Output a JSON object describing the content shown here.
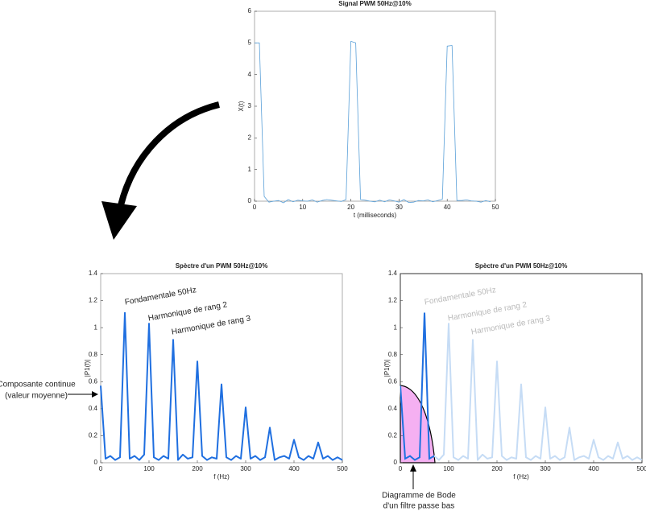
{
  "chart_data": [
    {
      "type": "line",
      "title": "Signal PWM 50Hz@10%",
      "x_label": "t (milliseconds)",
      "y_label": "X(t)",
      "x": [
        0,
        1,
        2,
        3,
        4,
        5,
        6,
        7,
        8,
        9,
        10,
        11,
        12,
        13,
        14,
        15,
        16,
        17,
        18,
        19,
        20,
        21,
        22,
        23,
        24,
        25,
        26,
        27,
        28,
        29,
        30,
        31,
        32,
        33,
        34,
        35,
        36,
        37,
        38,
        39,
        40,
        41,
        42,
        43,
        44,
        45,
        46,
        47,
        48,
        49
      ],
      "values": [
        5,
        5,
        0.15,
        -0.03,
        0,
        0.02,
        -0.05,
        0.05,
        -0.02,
        0.03,
        0.01,
        0,
        0.04,
        -0.03,
        0.02,
        0.05,
        0.03,
        0.01,
        -0.01,
        0.05,
        5.05,
        5,
        0.05,
        0.03,
        0,
        -0.02,
        0.03,
        -0.02,
        0.04,
        0.01,
        -0.03,
        0.05,
        -0.04,
        -0.03,
        0.02,
        0.01,
        0.04,
        -0.02,
        0.02,
        0.06,
        4.9,
        4.92,
        0.02,
        0.02,
        0.04,
        0.01,
        0,
        -0.03,
        0.02,
        -0.02
      ],
      "color": "#5aa0d8",
      "xlim": [
        0,
        50
      ],
      "xticks": [
        0,
        10,
        20,
        30,
        40,
        50
      ],
      "ylim": [
        0,
        6
      ],
      "yticks": [
        0,
        1,
        2,
        3,
        4,
        5,
        6
      ]
    },
    {
      "type": "line",
      "title": "Spèctre d'un PWM 50Hz@10%",
      "x_label": "f (Hz)",
      "y_label": "|P1(f)|",
      "x": [
        0,
        10,
        20,
        30,
        40,
        50,
        60,
        70,
        80,
        90,
        100,
        110,
        120,
        130,
        140,
        150,
        160,
        170,
        180,
        190,
        200,
        210,
        220,
        230,
        240,
        250,
        260,
        270,
        280,
        290,
        300,
        310,
        320,
        330,
        340,
        350,
        360,
        370,
        380,
        390,
        400,
        410,
        420,
        430,
        440,
        450,
        460,
        470,
        480,
        490,
        500
      ],
      "values": [
        0.57,
        0.03,
        0.05,
        0.02,
        0.04,
        1.11,
        0.03,
        0.05,
        0.02,
        0.06,
        1.03,
        0.04,
        0.02,
        0.05,
        0.03,
        0.91,
        0.02,
        0.06,
        0.03,
        0.04,
        0.75,
        0.05,
        0.02,
        0.04,
        0.03,
        0.58,
        0.04,
        0.02,
        0.05,
        0.03,
        0.41,
        0.03,
        0.05,
        0.02,
        0.04,
        0.26,
        0.02,
        0.04,
        0.05,
        0.03,
        0.17,
        0.04,
        0.02,
        0.05,
        0.03,
        0.15,
        0.03,
        0.05,
        0.02,
        0.04,
        0.02
      ],
      "color": "#1f6fe0",
      "xlim": [
        0,
        500
      ],
      "xticks": [
        0,
        100,
        200,
        300,
        400,
        500
      ],
      "ylim": [
        0,
        1.4
      ],
      "yticks": [
        0,
        0.2,
        0.4,
        0.6,
        0.8,
        1,
        1.2,
        1.4
      ],
      "annotations": [
        "Fondamentale 50Hz",
        "Harmonique de rang 2",
        "Harmonique de rang 3"
      ]
    },
    {
      "type": "line",
      "title": "Spèctre d'un PWM 50Hz@10%",
      "x_label": "f (Hz)",
      "y_label": "|P1(f)|",
      "x": [
        0,
        10,
        20,
        30,
        40,
        50,
        60,
        70,
        80,
        90,
        100,
        110,
        120,
        130,
        140,
        150,
        160,
        170,
        180,
        190,
        200,
        210,
        220,
        230,
        240,
        250,
        260,
        270,
        280,
        290,
        300,
        310,
        320,
        330,
        340,
        350,
        360,
        370,
        380,
        390,
        400,
        410,
        420,
        430,
        440,
        450,
        460,
        470,
        480,
        490,
        500
      ],
      "values": [
        0.57,
        0.03,
        0.05,
        0.02,
        0.04,
        1.11,
        0.03,
        0.05,
        0.02,
        0.06,
        1.03,
        0.04,
        0.02,
        0.05,
        0.03,
        0.91,
        0.02,
        0.06,
        0.03,
        0.04,
        0.75,
        0.05,
        0.02,
        0.04,
        0.03,
        0.58,
        0.04,
        0.02,
        0.05,
        0.03,
        0.41,
        0.03,
        0.05,
        0.02,
        0.04,
        0.26,
        0.02,
        0.04,
        0.05,
        0.03,
        0.17,
        0.04,
        0.02,
        0.05,
        0.03,
        0.15,
        0.03,
        0.05,
        0.02,
        0.04,
        0.02
      ],
      "color": "#c6dcf5",
      "highlight_color": "#1f6fe0",
      "xlim": [
        0,
        500
      ],
      "xticks": [
        0,
        100,
        200,
        300,
        400,
        500
      ],
      "ylim": [
        0,
        1.4
      ],
      "yticks": [
        0,
        0.2,
        0.4,
        0.6,
        0.8,
        1,
        1.2,
        1.4
      ],
      "annotations": [
        "Fondamentale 50Hz",
        "Harmonique de rang 2",
        "Harmonique de rang 3"
      ]
    }
  ],
  "annotations": {
    "dc_line1": "Composante continue",
    "dc_line2": "(valeur moyenne)",
    "bode_line1": "Diagramme de Bode",
    "bode_line2": "d'un filtre passe bas"
  }
}
